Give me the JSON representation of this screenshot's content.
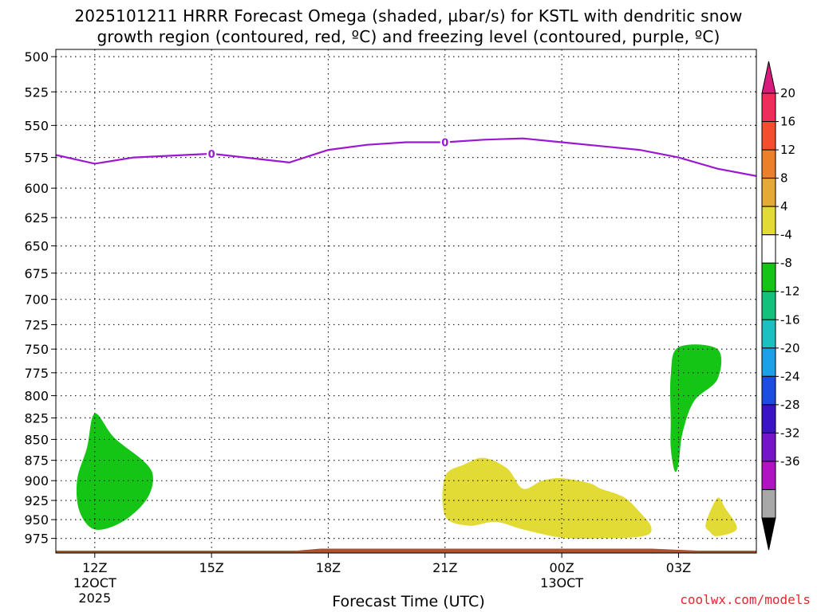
{
  "title_line1": "2025101211 HRRR Forecast Omega (shaded, µbar/s) for KSTL with dendritic snow",
  "title_line2": "growth region (contoured, red, ºC) and freezing level (contoured, purple, ºC)",
  "credit": "coolwx.com/models",
  "chart_data": {
    "type": "time-height cross section",
    "xlabel": "Forecast Time (UTC)",
    "ylabel": "",
    "x_ticks": [
      {
        "label": "12Z",
        "sub1": "12OCT",
        "sub2": "2025",
        "hour": 0
      },
      {
        "label": "15Z",
        "sub1": "",
        "sub2": "",
        "hour": 3
      },
      {
        "label": "18Z",
        "sub1": "",
        "sub2": "",
        "hour": 6
      },
      {
        "label": "21Z",
        "sub1": "",
        "sub2": "",
        "hour": 9
      },
      {
        "label": "00Z",
        "sub1": "13OCT",
        "sub2": "",
        "hour": 12
      },
      {
        "label": "03Z",
        "sub1": "",
        "sub2": "",
        "hour": 15
      }
    ],
    "xlim_hours": [
      -1,
      17
    ],
    "y_ticks": [
      500,
      525,
      550,
      575,
      600,
      625,
      650,
      675,
      700,
      725,
      750,
      775,
      800,
      825,
      850,
      875,
      900,
      925,
      950,
      975
    ],
    "ylim_mb": [
      495,
      995
    ],
    "y_scale": "log-pressure (inverted)",
    "grid": true,
    "freezing_level": {
      "label": "0",
      "color": "#9b17d1",
      "label_hours": [
        3,
        9
      ],
      "points": [
        [
          -1,
          573
        ],
        [
          0,
          580
        ],
        [
          1,
          575
        ],
        [
          3,
          572
        ],
        [
          5,
          579
        ],
        [
          6,
          569
        ],
        [
          7,
          565
        ],
        [
          8,
          563
        ],
        [
          9,
          563
        ],
        [
          10,
          561
        ],
        [
          11,
          560
        ],
        [
          12,
          563
        ],
        [
          13,
          566
        ],
        [
          14,
          569
        ],
        [
          15,
          575
        ],
        [
          16,
          584
        ],
        [
          17,
          590
        ]
      ]
    },
    "omega_regions": [
      {
        "class": "-4 to -8",
        "color": "#15c515",
        "points": [
          [
            -0.45,
            898
          ],
          [
            -0.2,
            860
          ],
          [
            0,
            820
          ],
          [
            0.5,
            848
          ],
          [
            1.3,
            878
          ],
          [
            1.5,
            898
          ],
          [
            1.3,
            926
          ],
          [
            0.7,
            953
          ],
          [
            0,
            963
          ],
          [
            -0.4,
            938
          ]
        ]
      },
      {
        "class": "-4 to -8",
        "color": "#15c515",
        "points": [
          [
            14.8,
            778
          ],
          [
            15,
            748
          ],
          [
            16,
            750
          ],
          [
            16,
            782
          ],
          [
            15.4,
            806
          ],
          [
            15.1,
            843
          ],
          [
            15,
            880
          ],
          [
            14.9,
            888
          ],
          [
            14.8,
            860
          ],
          [
            14.8,
            830
          ]
        ]
      },
      {
        "class": "4 to 8",
        "color": "#e3db35",
        "points": [
          [
            9,
            895
          ],
          [
            9.5,
            880
          ],
          [
            10,
            872
          ],
          [
            10.6,
            885
          ],
          [
            11,
            910
          ],
          [
            11.5,
            900
          ],
          [
            12,
            897
          ],
          [
            12.7,
            903
          ],
          [
            13,
            910
          ],
          [
            13.6,
            921
          ],
          [
            14,
            940
          ],
          [
            14.3,
            960
          ],
          [
            14.1,
            972
          ],
          [
            13,
            975
          ],
          [
            12,
            974
          ],
          [
            11,
            963
          ],
          [
            10.3,
            953
          ],
          [
            9.6,
            958
          ],
          [
            9,
            945
          ]
        ]
      },
      {
        "class": "4 to 8",
        "color": "#e3db35",
        "points": [
          [
            15.7,
            955
          ],
          [
            16,
            922
          ],
          [
            16.2,
            935
          ],
          [
            16.5,
            962
          ],
          [
            16,
            972
          ],
          [
            15.8,
            966
          ]
        ]
      }
    ],
    "surface_terrain": {
      "color": "#a9532f",
      "pressure_mb": 990
    },
    "colorbar": {
      "labels": [
        "20",
        "16",
        "12",
        "8",
        "4",
        "-4",
        "-8",
        "-12",
        "-16",
        "-20",
        "-24",
        "-28",
        "-32",
        "-36"
      ],
      "colors_top_to_bottom": [
        "#ee2e5a",
        "#f44e2f",
        "#ec7f27",
        "#e5a935",
        "#e3db35",
        "#ffffff",
        "#15c515",
        "#12c27c",
        "#1bc1c1",
        "#1aa1ea",
        "#1c4de2",
        "#3c12c7",
        "#7514c9",
        "#b012c4",
        "#a8a8a8"
      ],
      "top_arrow_color": "#d81c7d",
      "bottom_arrow_color": "#000000"
    }
  }
}
